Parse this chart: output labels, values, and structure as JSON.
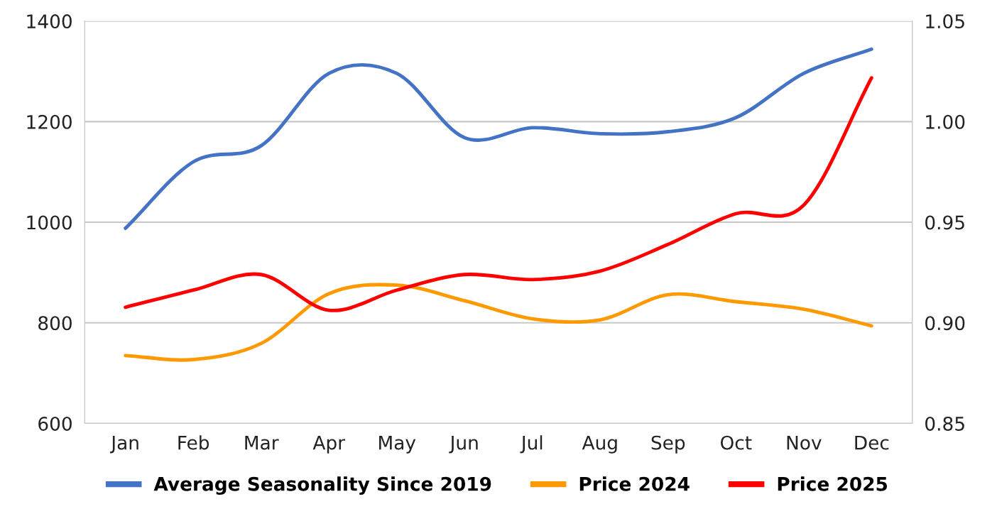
{
  "chart_data": {
    "type": "line",
    "categories": [
      "Jan",
      "Feb",
      "Mar",
      "Apr",
      "May",
      "Jun",
      "Jul",
      "Aug",
      "Sep",
      "Oct",
      "Nov",
      "Dec"
    ],
    "series": [
      {
        "name": "Average Seasonality Since 2019",
        "color": "#4472c4",
        "axis": "y2",
        "values": [
          0.947,
          0.98,
          0.988,
          1.024,
          1.024,
          0.992,
          0.997,
          0.994,
          0.995,
          1.002,
          1.024,
          1.036
        ]
      },
      {
        "name": "Price 2024",
        "color": "#ff9900",
        "values": [
          735,
          727,
          759,
          858,
          875,
          844,
          808,
          806,
          856,
          842,
          827,
          794
        ]
      },
      {
        "name": "Price 2025",
        "color": "#ff0000",
        "values": [
          831,
          865,
          896,
          825,
          865,
          896,
          886,
          903,
          956,
          1017,
          1034,
          1287
        ]
      }
    ],
    "ylim": [
      600,
      1400
    ],
    "yticks": [
      600,
      800,
      1000,
      1200,
      1400
    ],
    "y2lim": [
      0.85,
      1.05
    ],
    "y2ticks": [
      {
        "value": 0.85,
        "label": "0.85"
      },
      {
        "value": 0.9,
        "label": "0.90"
      },
      {
        "value": 0.95,
        "label": "0.95"
      },
      {
        "value": 1.0,
        "label": "1.00"
      },
      {
        "value": 1.05,
        "label": "1.05"
      }
    ],
    "grid": "y",
    "legend": "bottom",
    "marker": "none",
    "line_style": "solid"
  }
}
